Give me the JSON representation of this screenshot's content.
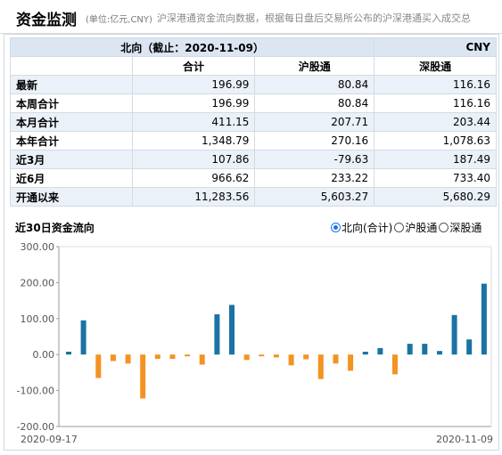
{
  "header": {
    "title": "资金监测",
    "unit": "(单位:亿元,CNY)",
    "description": "沪深港通资金流向数据，根据每日盘后交易所公布的沪深港通买入成交总"
  },
  "table": {
    "title": "北向（截止：2020-11-09）",
    "currency": "CNY",
    "columns": [
      "合计",
      "沪股通",
      "深股通"
    ],
    "rows": [
      {
        "label": "最新",
        "values": [
          "196.99",
          "80.84",
          "116.16"
        ]
      },
      {
        "label": "本周合计",
        "values": [
          "196.99",
          "80.84",
          "116.16"
        ]
      },
      {
        "label": "本月合计",
        "values": [
          "411.15",
          "207.71",
          "203.44"
        ]
      },
      {
        "label": "本年合计",
        "values": [
          "1,348.79",
          "270.16",
          "1,078.63"
        ]
      },
      {
        "label": "近3月",
        "values": [
          "107.86",
          "-79.63",
          "187.49"
        ]
      },
      {
        "label": "近6月",
        "values": [
          "966.62",
          "233.22",
          "733.40"
        ]
      },
      {
        "label": "开通以来",
        "values": [
          "11,283.56",
          "5,603.27",
          "5,680.29"
        ]
      }
    ]
  },
  "chart_section": {
    "title": "近30日资金流向",
    "options": [
      {
        "label": "北向(合计)",
        "checked": true
      },
      {
        "label": "沪股通",
        "checked": false
      },
      {
        "label": "深股通",
        "checked": false
      }
    ]
  },
  "chart_data": {
    "type": "bar",
    "ylim": [
      -200,
      300
    ],
    "yticks": [
      "300.00",
      "200.00",
      "100.00",
      "0.00",
      "-100.00",
      "-200.00"
    ],
    "x_start_label": "2020-09-17",
    "x_end_label": "2020-11-09",
    "positive_color": "#1a73a3",
    "negative_color": "#f39322",
    "values": [
      8,
      95,
      -65,
      -18,
      -25,
      -122,
      -12,
      -12,
      -5,
      -28,
      112,
      138,
      -15,
      -5,
      -8,
      -30,
      -13,
      -68,
      -25,
      -45,
      8,
      18,
      -55,
      30,
      30,
      10,
      110,
      42,
      197
    ]
  }
}
